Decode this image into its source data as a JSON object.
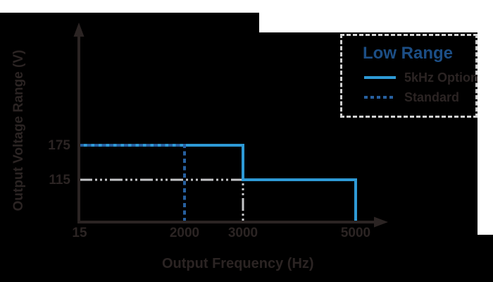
{
  "figure": {
    "x_axis_label": "Output Frequency (Hz)",
    "y_axis_label": "Output Voltage Range (V)"
  },
  "legend": {
    "title": "Low Range",
    "items": [
      {
        "label": "5kHz Option",
        "style": "solid"
      },
      {
        "label": "Standard",
        "style": "dashed"
      }
    ]
  },
  "chart_data": {
    "type": "line",
    "subtype": "step",
    "title": "",
    "xlabel": "Output Frequency (Hz)",
    "ylabel": "Output Voltage Range (V)",
    "x_ticks": [
      15,
      2000,
      3000,
      5000
    ],
    "y_ticks": [
      175,
      115
    ],
    "x_tick_labels": [
      "15",
      "2000",
      "3000",
      "5000"
    ],
    "y_tick_labels": [
      "175",
      "115"
    ],
    "xlim": [
      15,
      5600
    ],
    "ylim": [
      0,
      230
    ],
    "grid": false,
    "legend_position": "top-right",
    "legend_title": "Low Range",
    "series": [
      {
        "name": "5kHz Option",
        "style": "solid",
        "color": "#2e9ad6",
        "points": [
          [
            15,
            175
          ],
          [
            3000,
            175
          ],
          [
            3000,
            115
          ],
          [
            5000,
            115
          ],
          [
            5000,
            0
          ]
        ]
      },
      {
        "name": "Standard",
        "style": "dashed",
        "color": "#27609f",
        "points": [
          [
            15,
            175
          ],
          [
            2000,
            175
          ],
          [
            2000,
            0
          ]
        ]
      }
    ],
    "guides": [
      {
        "name": "115V at 3000Hz guide",
        "style": "dash-dot",
        "color": "#c4c5c7",
        "points": [
          [
            15,
            115
          ],
          [
            3000,
            115
          ],
          [
            3000,
            0
          ]
        ]
      }
    ]
  },
  "colors": {
    "background": "#000000",
    "margin_white": "#ffffff",
    "text": "#2b2423",
    "axis": "#2b2423",
    "solid_line": "#2e9ad6",
    "dashed_line": "#27609f",
    "guide_line": "#c4c5c7",
    "legend_border": "#d2d2d2",
    "legend_title": "#1c4e85"
  }
}
